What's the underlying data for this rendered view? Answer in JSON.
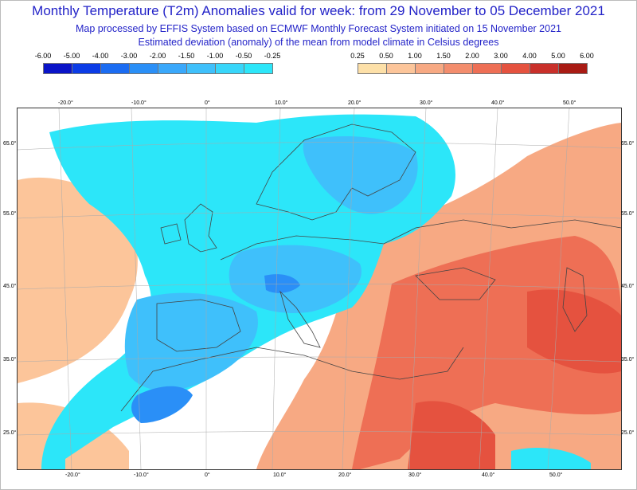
{
  "header": {
    "title": "Monthly Temperature (T2m) Anomalies valid for week: from 29 November to 05 December 2021",
    "subtitle1": "Map processed by EFFIS System based on ECMWF Monthly Forecast System initiated on 15 November 2021",
    "subtitle2": "Estimated deviation (anomaly) of the mean from model climate in Celsius degrees"
  },
  "legend": {
    "cold": {
      "ticks": [
        "-6.00",
        "-5.00",
        "-4.00",
        "-3.00",
        "-2.00",
        "-1.50",
        "-1.00",
        "-0.50",
        "-0.25"
      ],
      "colors": [
        "#0a14c8",
        "#0c3ce6",
        "#1b6cf2",
        "#2a8ff7",
        "#3aa8fb",
        "#3fc0fb",
        "#38d6fa",
        "#2ce6f9"
      ]
    },
    "warm": {
      "ticks": [
        "0.25",
        "0.50",
        "1.00",
        "1.50",
        "2.00",
        "3.00",
        "4.00",
        "5.00",
        "6.00"
      ],
      "colors": [
        "#fde0a8",
        "#fcc59a",
        "#f7a983",
        "#f38d6d",
        "#ee6f55",
        "#e5523f",
        "#c9302a",
        "#a91b14"
      ]
    }
  },
  "map": {
    "lon_labels": [
      "-20.0°",
      "-10.0°",
      "0°",
      "10.0°",
      "20.0°",
      "30.0°",
      "40.0°",
      "50.0°"
    ],
    "lat_labels": [
      "65.0°",
      "55.0°",
      "45.0°",
      "35.0°",
      "25.0°"
    ],
    "colors": {
      "ocean_warm": "#fcc59a",
      "ocean_neutral": "#ffffff",
      "cold_light": "#2ce6f9",
      "cold_mid": "#3fc0fb",
      "cold_deep": "#2a8ff7",
      "warm_light": "#fcc59a",
      "warm_mid": "#f7a983",
      "warm_strong": "#ee6f55",
      "warm_hot": "#e5523f"
    }
  }
}
